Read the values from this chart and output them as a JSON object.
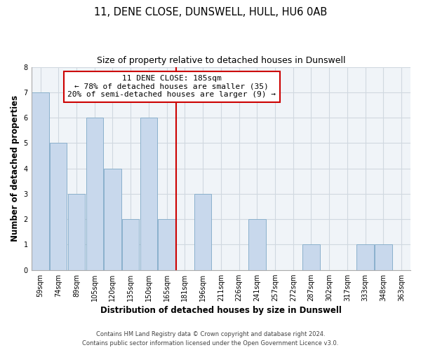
{
  "title": "11, DENE CLOSE, DUNSWELL, HULL, HU6 0AB",
  "subtitle": "Size of property relative to detached houses in Dunswell",
  "xlabel": "Distribution of detached houses by size in Dunswell",
  "ylabel": "Number of detached properties",
  "bar_labels": [
    "59sqm",
    "74sqm",
    "89sqm",
    "105sqm",
    "120sqm",
    "135sqm",
    "150sqm",
    "165sqm",
    "181sqm",
    "196sqm",
    "211sqm",
    "226sqm",
    "241sqm",
    "257sqm",
    "272sqm",
    "287sqm",
    "302sqm",
    "317sqm",
    "333sqm",
    "348sqm",
    "363sqm"
  ],
  "bar_values": [
    7,
    5,
    3,
    6,
    4,
    2,
    6,
    2,
    0,
    3,
    0,
    0,
    2,
    0,
    0,
    1,
    0,
    0,
    1,
    1,
    0
  ],
  "bar_color": "#c8d8ec",
  "bar_edge_color": "#8ab0cc",
  "highlight_line_index": 8,
  "annotation_box": {
    "title": "11 DENE CLOSE: 185sqm",
    "line1": "← 78% of detached houses are smaller (35)",
    "line2": "20% of semi-detached houses are larger (9) →"
  },
  "ylim": [
    0,
    8
  ],
  "yticks": [
    0,
    1,
    2,
    3,
    4,
    5,
    6,
    7,
    8
  ],
  "footer_line1": "Contains HM Land Registry data © Crown copyright and database right 2024.",
  "footer_line2": "Contains public sector information licensed under the Open Government Licence v3.0.",
  "grid_color": "#d0d8e0",
  "bg_color": "#f0f4f8",
  "annotation_box_color": "#ffffff",
  "annotation_box_edge_color": "#cc0000",
  "highlight_line_color": "#cc0000",
  "title_fontsize": 10.5,
  "subtitle_fontsize": 9,
  "axis_label_fontsize": 8.5,
  "tick_fontsize": 7,
  "annotation_fontsize": 8,
  "footer_fontsize": 6
}
